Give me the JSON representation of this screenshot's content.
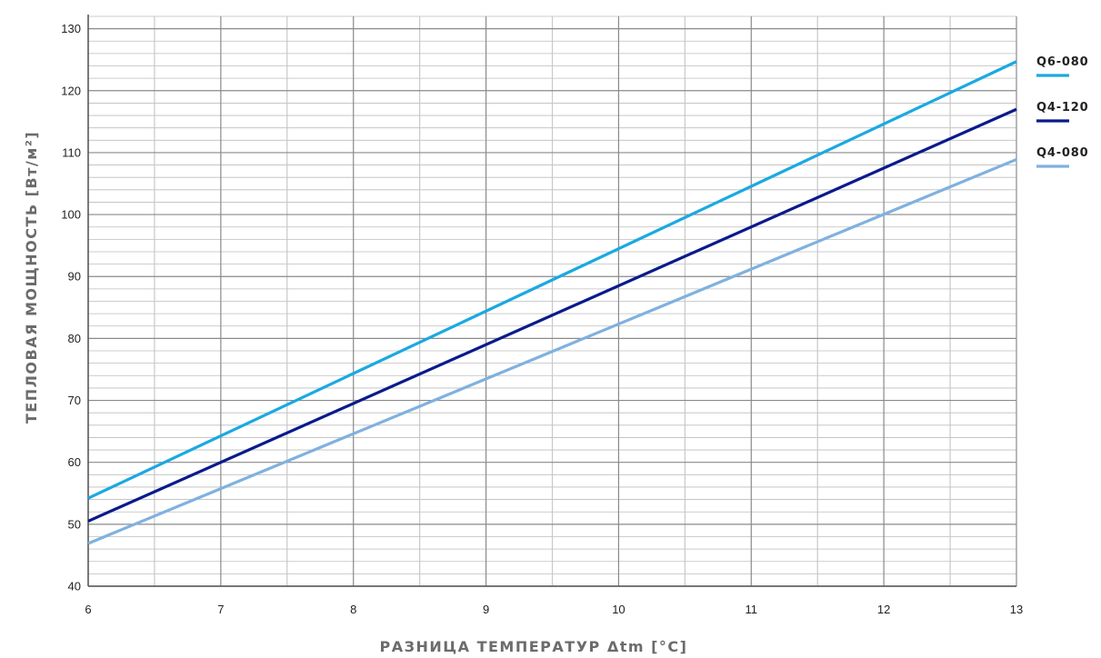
{
  "chart_data": {
    "type": "line",
    "xlabel": "РАЗНИЦА ТЕМПЕРАТУР Δtm [°C]",
    "ylabel": "ТЕПЛОВАЯ МОЩНОСТЬ  [Вт/м²]",
    "xlim": [
      6,
      13
    ],
    "ylim": [
      40,
      132
    ],
    "x_ticks": [
      "6",
      "7",
      "8",
      "9",
      "10",
      "11",
      "12",
      "13"
    ],
    "y_ticks": [
      "40",
      "50",
      "60",
      "70",
      "80",
      "90",
      "100",
      "110",
      "120",
      "130"
    ],
    "grid": true,
    "legend_position": "right",
    "series": [
      {
        "name": "Q6-080",
        "color": "#1aa9e1",
        "x": [
          6,
          13
        ],
        "y": [
          54.2,
          124.7
        ]
      },
      {
        "name": "Q4-120",
        "color": "#0a1a8c",
        "x": [
          6,
          13
        ],
        "y": [
          50.5,
          117.0
        ]
      },
      {
        "name": "Q4-080",
        "color": "#7fb1df",
        "x": [
          6,
          13
        ],
        "y": [
          46.9,
          108.9
        ]
      }
    ]
  }
}
